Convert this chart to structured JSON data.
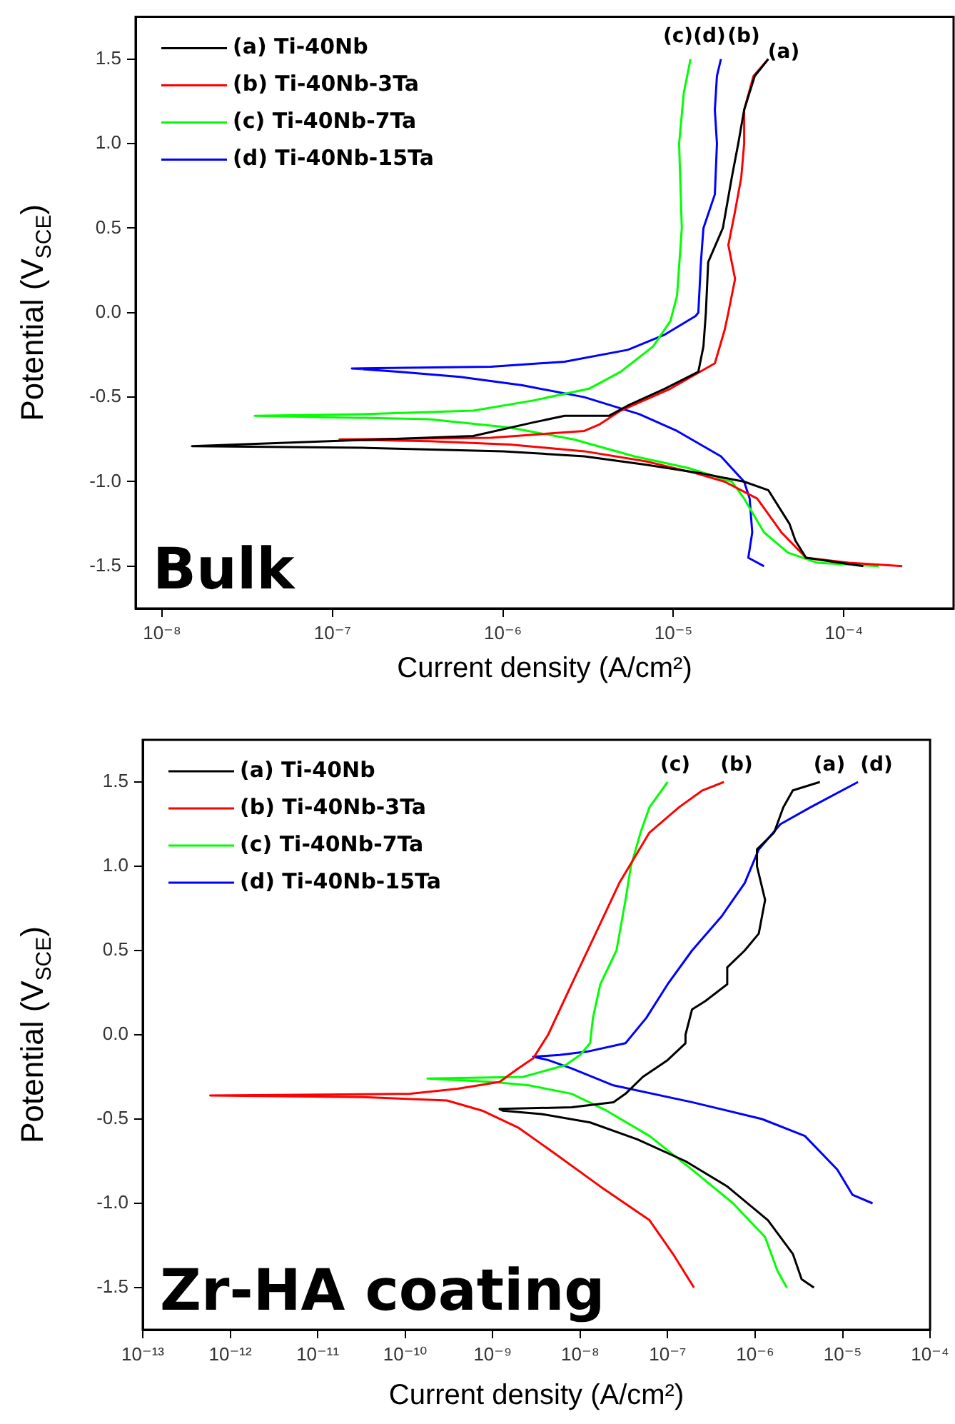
{
  "chart_data": [
    {
      "type": "line",
      "xlabel": "Current density (A/cm²)",
      "ylabel": "Potential (V$_{SCE}$)",
      "log": "x",
      "grid": false,
      "legend": "top left",
      "marker": "none",
      "xlim": [
        7e-09,
        0.00044
      ],
      "ylim": [
        -1.75,
        1.75
      ],
      "xticks": [
        {
          "value": 1e-08,
          "label": "10⁻⁸"
        },
        {
          "value": 1e-07,
          "label": "10⁻⁷"
        },
        {
          "value": 1e-06,
          "label": "10⁻⁶"
        },
        {
          "value": 1e-05,
          "label": "10⁻⁵"
        },
        {
          "value": 0.0001,
          "label": "10⁻⁴"
        }
      ],
      "yticks": [
        -1.5,
        {
          "value": -1,
          "label": "-1.0"
        },
        -0.5,
        {
          "value": 0,
          "label": "0.0"
        },
        0.5,
        {
          "value": 1,
          "label": "1.0"
        },
        1.5
      ],
      "annotations": [
        "Bulk",
        "(c)",
        "(d)",
        "(b)",
        "(a)"
      ],
      "series": [
        {
          "name": "(a) Ti-40Nb",
          "color": "#000000",
          "x": [
            0.00013,
            6e-05,
            5.2e-05,
            4.8e-05,
            3.6e-05,
            2.6e-05,
            1.45e-05,
            6.9e-06,
            3e-06,
            1e-06,
            1.6e-07,
            1.5e-08,
            6.7e-07,
            1.5e-06,
            2.3e-06,
            4.2e-06,
            5.4e-06,
            8.9e-06,
            1.4e-05,
            1.5e-05,
            1.55e-05,
            1.6e-05,
            1.95e-05,
            2.2e-05,
            2.4e-05,
            2.6e-05,
            3e-05,
            3.6e-05
          ],
          "values": [
            -1.5,
            -1.45,
            -1.35,
            -1.25,
            -1.05,
            -1.0,
            -0.95,
            -0.9,
            -0.85,
            -0.82,
            -0.8,
            -0.79,
            -0.73,
            -0.65,
            -0.61,
            -0.61,
            -0.55,
            -0.45,
            -0.35,
            -0.2,
            0.0,
            0.3,
            0.5,
            0.8,
            1.0,
            1.2,
            1.4,
            1.5
          ]
        },
        {
          "name": "(b) Ti-40Nb-3Ta",
          "color": "#ff0000",
          "x": [
            0.00022,
            0.000107,
            6e-05,
            4.3e-05,
            3.1e-05,
            2e-05,
            1.35e-05,
            6.9e-06,
            3e-06,
            1.1e-06,
            3.7e-07,
            1.1e-07,
            8.5e-07,
            3e-06,
            3.7e-06,
            4.9e-06,
            9.6e-06,
            1.75e-05,
            2e-05,
            2.1e-05,
            2.3e-05,
            2.1e-05,
            2.3e-05,
            2.5e-05,
            2.6e-05,
            2.6e-05,
            2.95e-05,
            3.6e-05
          ],
          "values": [
            -1.5,
            -1.48,
            -1.45,
            -1.3,
            -1.1,
            -1.0,
            -0.95,
            -0.88,
            -0.82,
            -0.78,
            -0.76,
            -0.75,
            -0.74,
            -0.7,
            -0.66,
            -0.58,
            -0.45,
            -0.3,
            -0.1,
            0.0,
            0.2,
            0.4,
            0.6,
            0.8,
            1.0,
            1.2,
            1.4,
            1.5
          ]
        },
        {
          "name": "(c) Ti-40Nb-7Ta",
          "color": "#00ff00",
          "x": [
            0.00016,
            7e-05,
            4.7e-05,
            3.4e-05,
            2.6e-05,
            2.2e-05,
            1.23e-05,
            5.9e-06,
            2.6e-06,
            1.1e-06,
            3.7e-07,
            3.5e-08,
            1.6e-07,
            6.7e-07,
            1.5e-06,
            3.2e-06,
            4.9e-06,
            7.6e-06,
            9.6e-06,
            1.05e-05,
            1.12e-05,
            1.08e-05,
            1.15e-05,
            1.26e-05
          ],
          "values": [
            -1.5,
            -1.48,
            -1.42,
            -1.3,
            -1.1,
            -1.0,
            -0.92,
            -0.85,
            -0.75,
            -0.68,
            -0.63,
            -0.61,
            -0.6,
            -0.58,
            -0.52,
            -0.45,
            -0.35,
            -0.2,
            -0.05,
            0.1,
            0.5,
            1.0,
            1.3,
            1.5
          ]
        },
        {
          "name": "(d) Ti-40Nb-15Ta",
          "color": "#0000ff",
          "x": [
            3.4e-05,
            2.75e-05,
            2.9e-05,
            2.8e-05,
            2.6e-05,
            1.9e-05,
            1.05e-05,
            6.3e-06,
            3e-06,
            1.3e-06,
            5.6e-07,
            2.5e-07,
            1.3e-07,
            8.5e-07,
            2.3e-06,
            5.4e-06,
            8.9e-06,
            1.35e-05,
            1.4e-05,
            1.45e-05,
            1.5e-05,
            1.75e-05,
            1.8e-05,
            1.75e-05,
            1.8e-05,
            1.9e-05
          ],
          "values": [
            -1.5,
            -1.45,
            -1.3,
            -1.1,
            -1.0,
            -0.85,
            -0.7,
            -0.6,
            -0.5,
            -0.43,
            -0.38,
            -0.35,
            -0.33,
            -0.32,
            -0.29,
            -0.22,
            -0.13,
            -0.02,
            0.0,
            0.3,
            0.5,
            0.7,
            1.0,
            1.2,
            1.4,
            1.5
          ]
        }
      ]
    },
    {
      "type": "line",
      "xlabel": "Current density (A/cm²)",
      "ylabel": "Potential (V$_{SCE}$)",
      "log": "x",
      "grid": false,
      "legend": "top left",
      "marker": "none",
      "xlim": [
        1e-13,
        0.0001
      ],
      "ylim": [
        -1.75,
        1.75
      ],
      "xticks": [
        {
          "value": 1e-13,
          "label": "10⁻¹³"
        },
        {
          "value": 1e-12,
          "label": "10⁻¹²"
        },
        {
          "value": 1e-11,
          "label": "10⁻¹¹"
        },
        {
          "value": 1e-10,
          "label": "10⁻¹⁰"
        },
        {
          "value": 1e-09,
          "label": "10⁻⁹"
        },
        {
          "value": 1e-08,
          "label": "10⁻⁸"
        },
        {
          "value": 1e-07,
          "label": "10⁻⁷"
        },
        {
          "value": 1e-06,
          "label": "10⁻⁶"
        },
        {
          "value": 1e-05,
          "label": "10⁻⁵"
        },
        {
          "value": 0.0001,
          "label": "10⁻⁴"
        }
      ],
      "yticks": [
        -1.5,
        {
          "value": -1,
          "label": "-1.0"
        },
        -0.5,
        {
          "value": 0,
          "label": "0.0"
        },
        0.5,
        {
          "value": 1,
          "label": "1.0"
        },
        1.5
      ],
      "annotations": [
        "Zr-HA coating",
        "(c)",
        "(b)",
        "(a)",
        "(d)"
      ],
      "series": [
        {
          "name": "(a) Ti-40Nb",
          "color": "#000000",
          "x": [
            4.7e-06,
            3.4e-06,
            2.7e-06,
            1.4e-06,
            4.8e-07,
            1.6e-07,
            4.5e-08,
            1.3e-08,
            3.6e-09,
            1.3e-09,
            1.2e-09,
            8e-09,
            2.4e-08,
            3.3e-08,
            5.2e-08,
            1e-07,
            1.6e-07,
            1.6e-07,
            1.9e-07,
            2.7e-07,
            4.8e-07,
            4.8e-07,
            7.6e-07,
            1.1e-06,
            1.3e-06,
            1.05e-06,
            1.05e-06,
            1.65e-06,
            2.1e-06,
            2.7e-06,
            5.5e-06
          ],
          "values": [
            -1.5,
            -1.45,
            -1.3,
            -1.1,
            -0.9,
            -0.75,
            -0.62,
            -0.52,
            -0.47,
            -0.45,
            -0.44,
            -0.43,
            -0.4,
            -0.35,
            -0.25,
            -0.15,
            -0.05,
            0.0,
            0.15,
            0.2,
            0.3,
            0.4,
            0.5,
            0.6,
            0.8,
            1.0,
            1.1,
            1.2,
            1.35,
            1.45,
            1.5
          ]
        },
        {
          "name": "(b) Ti-40Nb-3Ta",
          "color": "#ff0000",
          "x": [
            2e-07,
            1.15e-07,
            6.2e-08,
            1.7e-08,
            5e-09,
            1.95e-09,
            7.6e-10,
            3e-10,
            3.3e-11,
            5.9e-13,
            1.15e-10,
            4e-10,
            1.2e-09,
            1.95e-09,
            2.9e-09,
            4.3e-09,
            8e-09,
            1.5e-08,
            2.8e-08,
            6.2e-08,
            1.35e-07,
            2.5e-07,
            4.4e-07
          ],
          "values": [
            -1.5,
            -1.3,
            -1.1,
            -0.9,
            -0.7,
            -0.55,
            -0.45,
            -0.39,
            -0.37,
            -0.36,
            -0.35,
            -0.32,
            -0.28,
            -0.2,
            -0.14,
            0.0,
            0.3,
            0.6,
            0.9,
            1.2,
            1.35,
            1.45,
            1.5
          ]
        },
        {
          "name": "(c) Ti-40Nb-7Ta",
          "color": "#00ff00",
          "x": [
            2.3e-06,
            1.8e-06,
            1.3e-06,
            5.6e-07,
            1.9e-07,
            6.2e-08,
            2e-08,
            8e-09,
            2.6e-09,
            1e-09,
            1.8e-10,
            2.2e-09,
            3.6e-09,
            6.8e-09,
            1e-08,
            1.3e-08,
            1.4e-08,
            1.7e-08,
            2.6e-08,
            3.3e-08,
            3.8e-08,
            4.9e-08,
            6.2e-08,
            1e-07
          ],
          "values": [
            -1.5,
            -1.4,
            -1.2,
            -1.0,
            -0.8,
            -0.6,
            -0.45,
            -0.35,
            -0.3,
            -0.28,
            -0.26,
            -0.25,
            -0.22,
            -0.18,
            -0.12,
            -0.05,
            0.1,
            0.3,
            0.5,
            0.8,
            1.0,
            1.2,
            1.35,
            1.5
          ]
        },
        {
          "name": "(d) Ti-40Nb-15Ta",
          "color": "#0000ff",
          "x": [
            2.2e-05,
            1.3e-05,
            8.7e-06,
            3.7e-06,
            1.2e-06,
            1.9e-07,
            2.4e-08,
            8e-09,
            4.3e-09,
            2.9e-09,
            5.8e-09,
            1.2e-08,
            3.3e-08,
            5.7e-08,
            1e-07,
            1.9e-07,
            4.1e-07,
            7.6e-07,
            1.1e-06,
            1.95e-06,
            4.3e-06,
            1.5e-05
          ],
          "values": [
            -1.0,
            -0.95,
            -0.8,
            -0.6,
            -0.5,
            -0.4,
            -0.3,
            -0.2,
            -0.15,
            -0.13,
            -0.12,
            -0.1,
            -0.05,
            0.1,
            0.3,
            0.5,
            0.7,
            0.9,
            1.1,
            1.25,
            1.35,
            1.5
          ]
        }
      ]
    }
  ]
}
